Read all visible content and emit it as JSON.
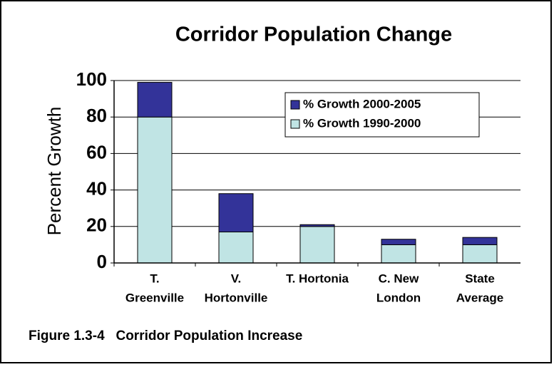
{
  "chart_data": {
    "type": "stacked_bar",
    "title": "Corridor Population Change",
    "ylabel": "Percent Growth",
    "caption": "Figure 1.3-4   Corridor Population Increase",
    "categories": [
      [
        "T.",
        "Greenville"
      ],
      [
        "V.",
        "Hortonville"
      ],
      [
        "T. Hortonia"
      ],
      [
        "C. New",
        "London"
      ],
      [
        "State",
        "Average"
      ]
    ],
    "series": [
      {
        "name": "% Growth 1990-2000",
        "color": "#c0e4e4",
        "values": [
          80,
          17,
          20,
          10,
          10
        ]
      },
      {
        "name": "% Growth 2000-2005",
        "color": "#333399",
        "values": [
          19,
          21,
          1,
          3,
          4
        ]
      }
    ],
    "ylim": [
      0,
      100
    ],
    "yticks": [
      0,
      20,
      40,
      60,
      80,
      100
    ],
    "grid": true,
    "legend": "upper right"
  }
}
